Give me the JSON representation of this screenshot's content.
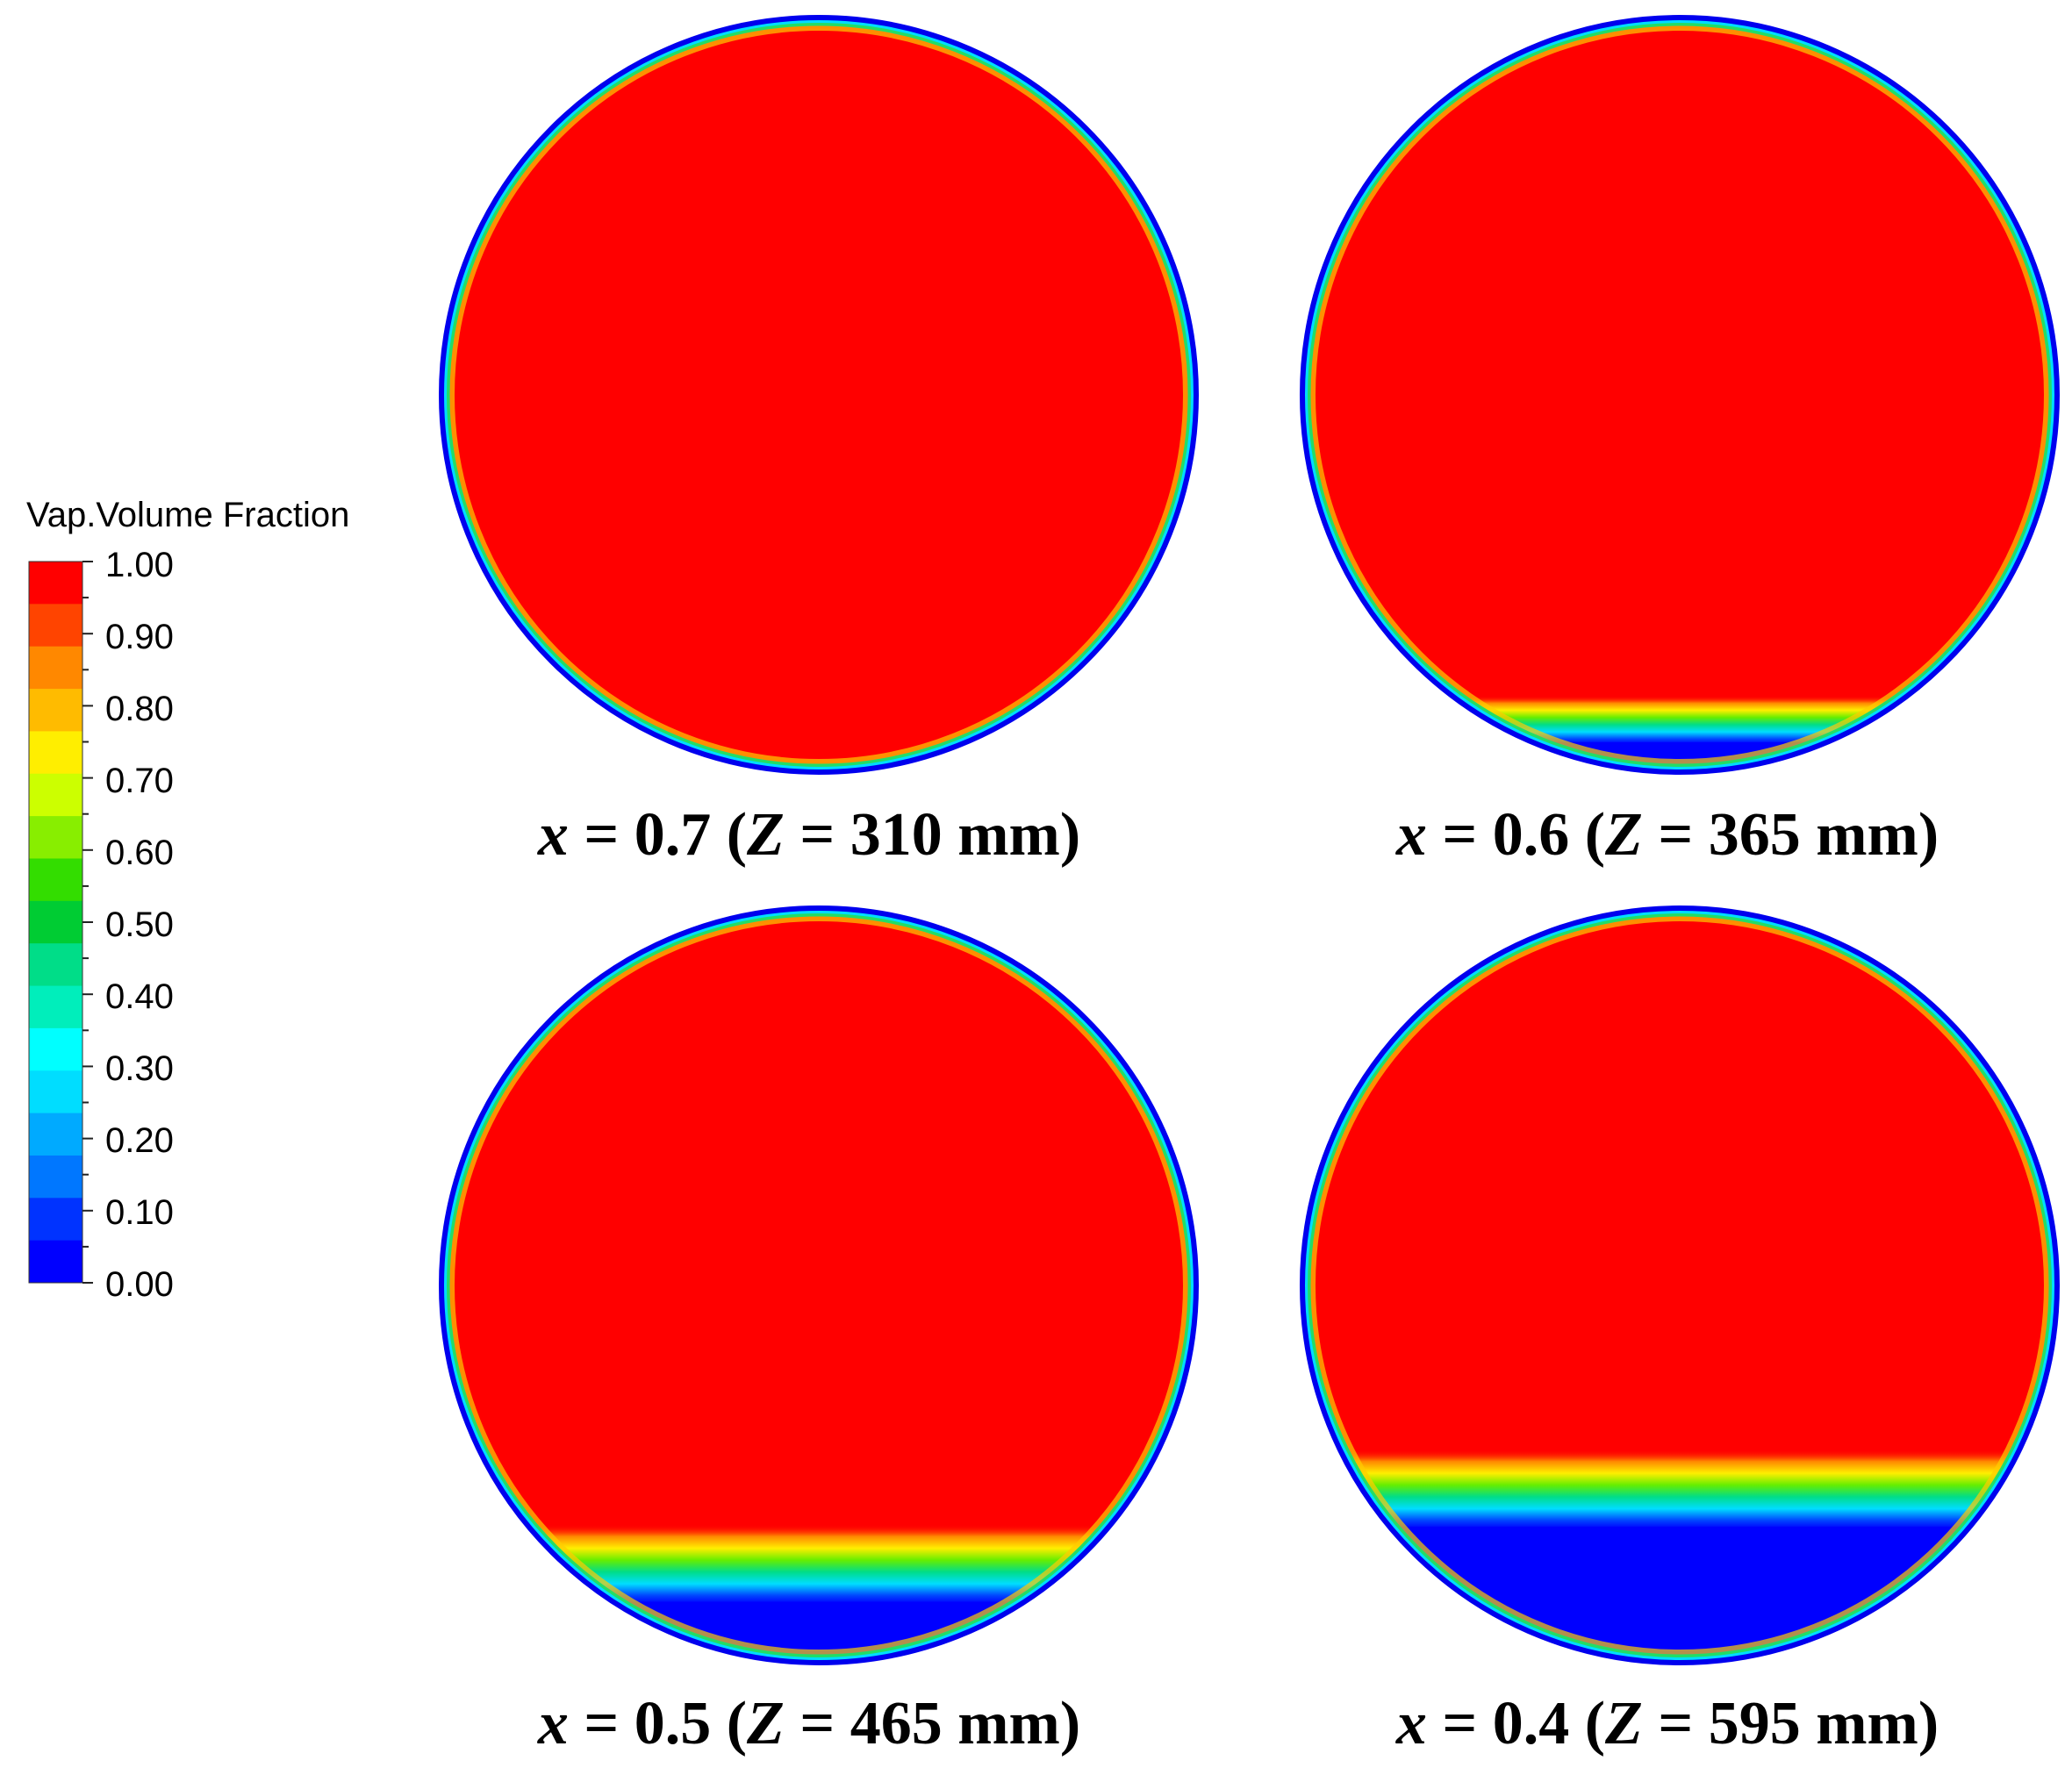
{
  "legend": {
    "title": "Vap.Volume Fraction",
    "ticks": [
      "1.00",
      "0.90",
      "0.80",
      "0.70",
      "0.60",
      "0.50",
      "0.40",
      "0.30",
      "0.20",
      "0.10",
      "0.00"
    ],
    "colors": [
      "#ff0000",
      "#ff4400",
      "#ff8800",
      "#ffbb00",
      "#ffee00",
      "#ccff00",
      "#88ee00",
      "#33dd00",
      "#00cc33",
      "#00dd88",
      "#00eebb",
      "#00ffff",
      "#00ddff",
      "#00aaff",
      "#0077ff",
      "#0033ff",
      "#0000ff"
    ]
  },
  "panels": [
    {
      "x_label": "x",
      "x_value": "0.7",
      "z_label": "Z",
      "z_value": "310 mm",
      "liquid_fraction": 0.0
    },
    {
      "x_label": "x",
      "x_value": "0.6",
      "z_label": "Z",
      "z_value": "365 mm",
      "liquid_fraction": 0.08
    },
    {
      "x_label": "x",
      "x_value": "0.5",
      "z_label": "Z",
      "z_value": "465 mm",
      "liquid_fraction": 0.15
    },
    {
      "x_label": "x",
      "x_value": "0.4",
      "z_label": "Z",
      "z_value": "595 mm",
      "liquid_fraction": 0.25
    }
  ]
}
